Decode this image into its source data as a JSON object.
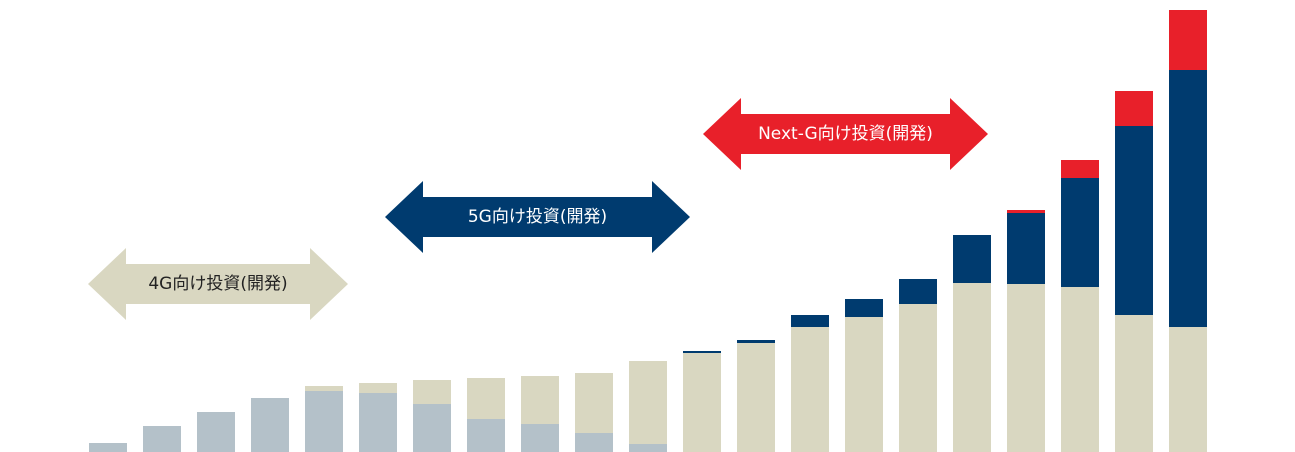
{
  "chart_data": {
    "type": "bar",
    "stacked": true,
    "categories": [
      null,
      null,
      null,
      null,
      null,
      null,
      null,
      null,
      null,
      null,
      null,
      null,
      null,
      null,
      null,
      null,
      null,
      null,
      null,
      null,
      null
    ],
    "ylim": [
      0,
      452
    ],
    "series": [
      {
        "color": "#b4c1c9",
        "values": [
          9,
          26,
          40,
          54,
          61,
          59,
          48,
          33,
          28,
          19,
          8,
          0,
          0,
          0,
          0,
          0,
          0,
          0,
          0,
          0,
          0
        ]
      },
      {
        "color": "#d9d7c1",
        "values": [
          0,
          0,
          0,
          0,
          5,
          10,
          24,
          41,
          48,
          60,
          83,
          99,
          109,
          125,
          135,
          148,
          169,
          168,
          165,
          137,
          125
        ]
      },
      {
        "color": "#003b6f",
        "values": [
          0,
          0,
          0,
          0,
          0,
          0,
          0,
          0,
          0,
          0,
          0,
          2,
          3,
          12,
          18,
          25,
          48,
          71,
          109,
          189,
          257
        ]
      },
      {
        "color": "#e8202a",
        "values": [
          0,
          0,
          0,
          0,
          0,
          0,
          0,
          0,
          0,
          0,
          0,
          0,
          0,
          0,
          0,
          0,
          0,
          3,
          18,
          35,
          60
        ]
      }
    ],
    "annotations": [
      {
        "text": "4G向け投資(開発)",
        "color": "#d9d7c1",
        "text_color": "#222222"
      },
      {
        "text": "5G向け投資(開発)",
        "color": "#003b6f",
        "text_color": "#ffffff"
      },
      {
        "text": "Next-G向け投資(開発)",
        "color": "#e8202a",
        "text_color": "#ffffff"
      }
    ]
  }
}
